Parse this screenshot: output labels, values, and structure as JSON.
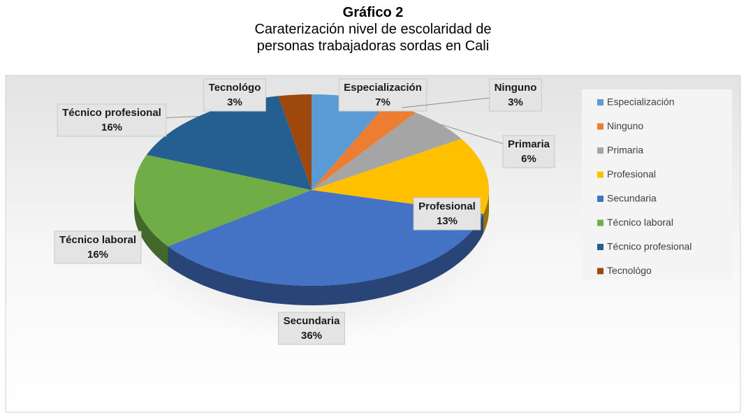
{
  "chart_data": {
    "type": "pie",
    "title": "Gráfico 2",
    "subtitle": "Caraterización nivel de escolaridad de personas trabajadoras sordas en Cali",
    "categories": [
      "Especialización",
      "Ninguno",
      "Primaria",
      "Profesional",
      "Secundaria",
      "Técnico laboral",
      "Técnico profesional",
      "Tecnológo"
    ],
    "values": [
      7,
      3,
      6,
      13,
      36,
      16,
      16,
      3
    ],
    "value_labels": [
      "7%",
      "3%",
      "6%",
      "13%",
      "36%",
      "16%",
      "16%",
      "3%"
    ],
    "colors": [
      "#5b9bd5",
      "#ed7d31",
      "#a5a5a5",
      "#ffc000",
      "#4472c4",
      "#70ad47",
      "#255e91",
      "#9e480e"
    ],
    "legend": "right"
  }
}
